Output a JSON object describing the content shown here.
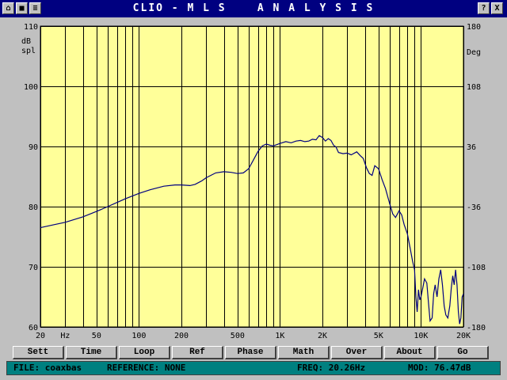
{
  "window": {
    "title": "CLIO - M L S    A N A L Y S I S",
    "help_label": "?",
    "close_label": "X"
  },
  "toolbar": {
    "buttons": [
      "Sett",
      "Time",
      "Loop",
      "Ref",
      "Phase",
      "Math",
      "Over",
      "About",
      "Go"
    ]
  },
  "status": {
    "file": "FILE: coaxbas",
    "reference": "REFERENCE: NONE",
    "freq": "FREQ: 20.26Hz",
    "mod": "MOD: 76.47dB"
  },
  "colors": {
    "plot_bg": "#ffff99",
    "grid": "#000000",
    "trace": "#000080",
    "titlebar": "#000080",
    "statusbar": "#008080"
  },
  "chart_data": {
    "type": "line",
    "xscale": "log",
    "xlim": [
      20,
      20000
    ],
    "ylim": [
      60,
      110
    ],
    "ylabel": "dB spl",
    "ylabel_right": "Deg",
    "y_ticks": [
      "110",
      "100",
      "90",
      "80",
      "70",
      "60"
    ],
    "y_right_ticks": [
      "180",
      "108",
      "36",
      "-36",
      "-108",
      "-180"
    ],
    "x_tick_labels": [
      {
        "f": 20,
        "label": "20"
      },
      {
        "f": 30,
        "label": "Hz"
      },
      {
        "f": 50,
        "label": "50"
      },
      {
        "f": 100,
        "label": "100"
      },
      {
        "f": 200,
        "label": "200"
      },
      {
        "f": 500,
        "label": "500"
      },
      {
        "f": 1000,
        "label": "1K"
      },
      {
        "f": 2000,
        "label": "2K"
      },
      {
        "f": 5000,
        "label": "5K"
      },
      {
        "f": 10000,
        "label": "10K"
      },
      {
        "f": 20000,
        "label": "20K"
      }
    ],
    "series": [
      {
        "x": [
          20,
          25,
          30,
          40,
          50,
          60,
          70,
          80,
          100,
          120,
          150,
          180,
          200,
          230,
          250,
          280,
          300,
          350,
          400,
          450,
          500,
          550,
          600,
          650,
          700,
          750,
          800,
          850,
          900,
          1000,
          1100,
          1200,
          1300,
          1400,
          1500,
          1600,
          1700,
          1800,
          1900,
          2000,
          2100,
          2200,
          2300,
          2400,
          2500,
          2600,
          2800,
          3000,
          3200,
          3500,
          3700,
          3900,
          4100,
          4300,
          4500,
          4700,
          5000,
          5300,
          5600,
          6000,
          6300,
          6600,
          7000,
          7300,
          7600,
          8000,
          8400,
          8700,
          9000,
          9200,
          9400,
          9600,
          9800,
          10000,
          10300,
          10600,
          11000,
          11300,
          11600,
          12000,
          12300,
          12600,
          13000,
          13400,
          13800,
          14200,
          14600,
          15000,
          15500,
          16000,
          16400,
          16800,
          17200,
          17600,
          18000,
          18400,
          18800,
          19200,
          19600,
          20000
        ],
        "y": [
          76.5,
          77.0,
          77.4,
          78.3,
          79.2,
          80.0,
          80.7,
          81.3,
          82.2,
          82.8,
          83.4,
          83.6,
          83.6,
          83.5,
          83.7,
          84.3,
          84.8,
          85.6,
          85.8,
          85.7,
          85.5,
          85.6,
          86.3,
          87.8,
          89.2,
          90.1,
          90.4,
          90.2,
          90.1,
          90.5,
          90.8,
          90.6,
          90.9,
          91.0,
          90.8,
          90.9,
          91.2,
          91.1,
          91.8,
          91.5,
          90.9,
          91.3,
          91.0,
          90.2,
          89.9,
          89.0,
          88.8,
          88.9,
          88.6,
          89.1,
          88.5,
          88.0,
          86.5,
          85.5,
          85.2,
          86.8,
          86.3,
          84.5,
          83.0,
          80.5,
          78.8,
          78.2,
          79.3,
          78.6,
          77.0,
          75.5,
          73.0,
          71.0,
          69.5,
          65.0,
          62.5,
          66.2,
          64.5,
          65.0,
          66.5,
          68.0,
          67.3,
          64.0,
          61.0,
          61.5,
          65.5,
          67.0,
          65.0,
          68.0,
          69.5,
          67.0,
          63.5,
          62.0,
          61.5,
          63.5,
          66.5,
          68.5,
          67.0,
          69.5,
          67.0,
          62.5,
          60.5,
          61.5,
          65.0,
          65.5
        ]
      }
    ]
  }
}
